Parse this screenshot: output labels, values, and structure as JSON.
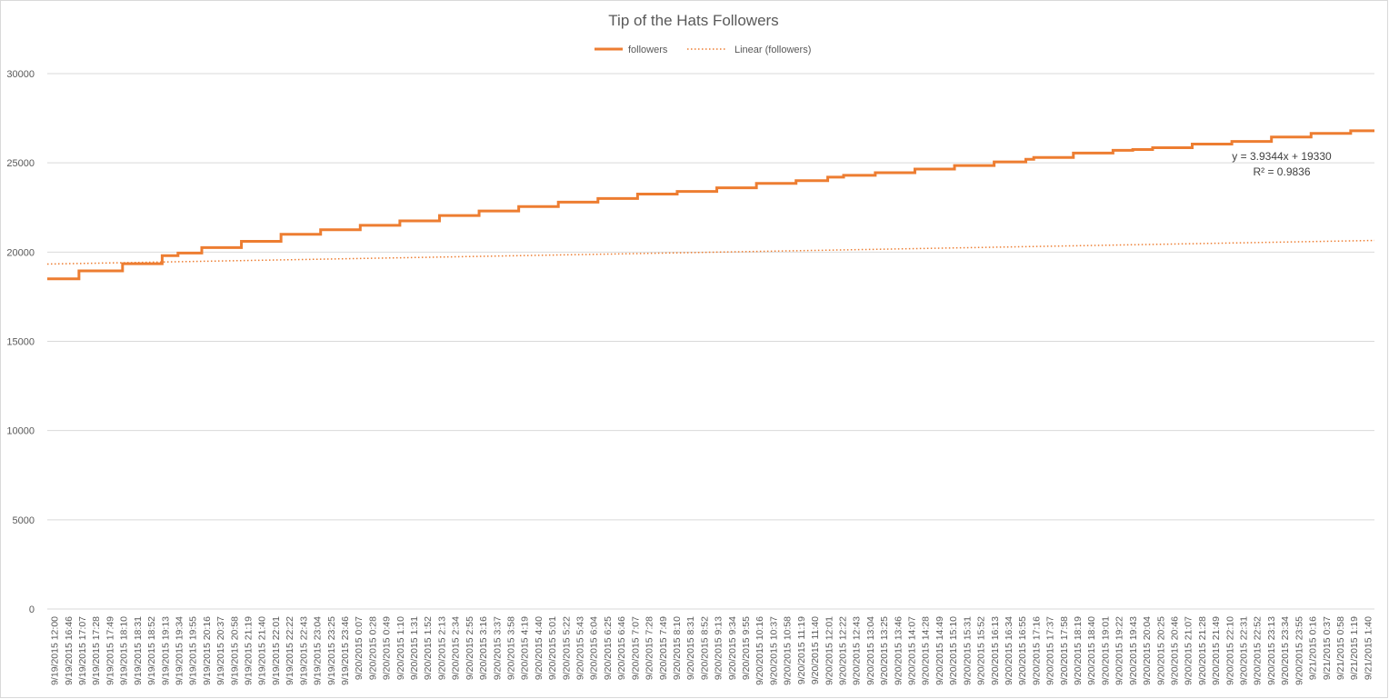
{
  "chart_data": {
    "type": "line",
    "title": "Tip of the Hats Followers",
    "legend_position": "top",
    "ylim": [
      0,
      30000
    ],
    "yticks": [
      0,
      5000,
      10000,
      15000,
      20000,
      25000,
      30000
    ],
    "grid": true,
    "colors": {
      "series": "#ED7D31",
      "grid": "#d9d9d9",
      "text": "#595959"
    },
    "categories": [
      "9/19/2015 12:00",
      "9/19/2015 16:46",
      "9/19/2015 17:07",
      "9/19/2015 17:28",
      "9/19/2015 17:49",
      "9/19/2015 18:10",
      "9/19/2015 18:31",
      "9/19/2015 18:52",
      "9/19/2015 19:13",
      "9/19/2015 19:34",
      "9/19/2015 19:55",
      "9/19/2015 20:16",
      "9/19/2015 20:37",
      "9/19/2015 20:58",
      "9/19/2015 21:19",
      "9/19/2015 21:40",
      "9/19/2015 22:01",
      "9/19/2015 22:22",
      "9/19/2015 22:43",
      "9/19/2015 23:04",
      "9/19/2015 23:25",
      "9/19/2015 23:46",
      "9/20/2015 0:07",
      "9/20/2015 0:28",
      "9/20/2015 0:49",
      "9/20/2015 1:10",
      "9/20/2015 1:31",
      "9/20/2015 1:52",
      "9/20/2015 2:13",
      "9/20/2015 2:34",
      "9/20/2015 2:55",
      "9/20/2015 3:16",
      "9/20/2015 3:37",
      "9/20/2015 3:58",
      "9/20/2015 4:19",
      "9/20/2015 4:40",
      "9/20/2015 5:01",
      "9/20/2015 5:22",
      "9/20/2015 5:43",
      "9/20/2015 6:04",
      "9/20/2015 6:25",
      "9/20/2015 6:46",
      "9/20/2015 7:07",
      "9/20/2015 7:28",
      "9/20/2015 7:49",
      "9/20/2015 8:10",
      "9/20/2015 8:31",
      "9/20/2015 8:52",
      "9/20/2015 9:13",
      "9/20/2015 9:34",
      "9/20/2015 9:55",
      "9/20/2015 10:16",
      "9/20/2015 10:37",
      "9/20/2015 10:58",
      "9/20/2015 11:19",
      "9/20/2015 11:40",
      "9/20/2015 12:01",
      "9/20/2015 12:22",
      "9/20/2015 12:43",
      "9/20/2015 13:04",
      "9/20/2015 13:25",
      "9/20/2015 13:46",
      "9/20/2015 14:07",
      "9/20/2015 14:28",
      "9/20/2015 14:49",
      "9/20/2015 15:10",
      "9/20/2015 15:31",
      "9/20/2015 15:52",
      "9/20/2015 16:13",
      "9/20/2015 16:34",
      "9/20/2015 16:55",
      "9/20/2015 17:16",
      "9/20/2015 17:37",
      "9/20/2015 17:58",
      "9/20/2015 18:19",
      "9/20/2015 18:40",
      "9/20/2015 19:01",
      "9/20/2015 19:22",
      "9/20/2015 19:43",
      "9/20/2015 20:04",
      "9/20/2015 20:25",
      "9/20/2015 20:46",
      "9/20/2015 21:07",
      "9/20/2015 21:28",
      "9/20/2015 21:49",
      "9/20/2015 22:10",
      "9/20/2015 22:31",
      "9/20/2015 22:52",
      "9/20/2015 23:13",
      "9/20/2015 23:34",
      "9/20/2015 23:55",
      "9/21/2015 0:16",
      "9/21/2015 0:37",
      "9/21/2015 0:58",
      "9/21/2015 1:19",
      "9/21/2015 1:40"
    ],
    "series": [
      {
        "name": "followers",
        "style": "solid",
        "steps": [
          [
            0,
            18500
          ],
          [
            8,
            18950
          ],
          [
            19,
            19350
          ],
          [
            29,
            19800
          ],
          [
            33,
            19950
          ],
          [
            39,
            20250
          ],
          [
            49,
            20600
          ],
          [
            59,
            21000
          ],
          [
            69,
            21250
          ],
          [
            79,
            21500
          ],
          [
            89,
            21750
          ],
          [
            99,
            22050
          ],
          [
            109,
            22300
          ],
          [
            119,
            22550
          ],
          [
            129,
            22800
          ],
          [
            139,
            23000
          ],
          [
            149,
            23250
          ],
          [
            159,
            23400
          ],
          [
            169,
            23600
          ],
          [
            179,
            23850
          ],
          [
            189,
            24000
          ],
          [
            197,
            24200
          ],
          [
            201,
            24300
          ],
          [
            209,
            24450
          ],
          [
            219,
            24650
          ],
          [
            229,
            24850
          ],
          [
            239,
            25050
          ],
          [
            247,
            25200
          ],
          [
            249,
            25300
          ],
          [
            259,
            25550
          ],
          [
            269,
            25700
          ],
          [
            274,
            25750
          ],
          [
            279,
            25850
          ],
          [
            289,
            26050
          ],
          [
            299,
            26200
          ],
          [
            309,
            26450
          ],
          [
            319,
            26650
          ],
          [
            329,
            26800
          ]
        ]
      },
      {
        "name": "Linear (followers)",
        "style": "dotted",
        "trendline": {
          "slope": 3.9344,
          "intercept": 19330
        }
      }
    ],
    "trendline_equation": "y = 3.9344x + 19330",
    "trendline_r2": "R² = 0.9836"
  }
}
